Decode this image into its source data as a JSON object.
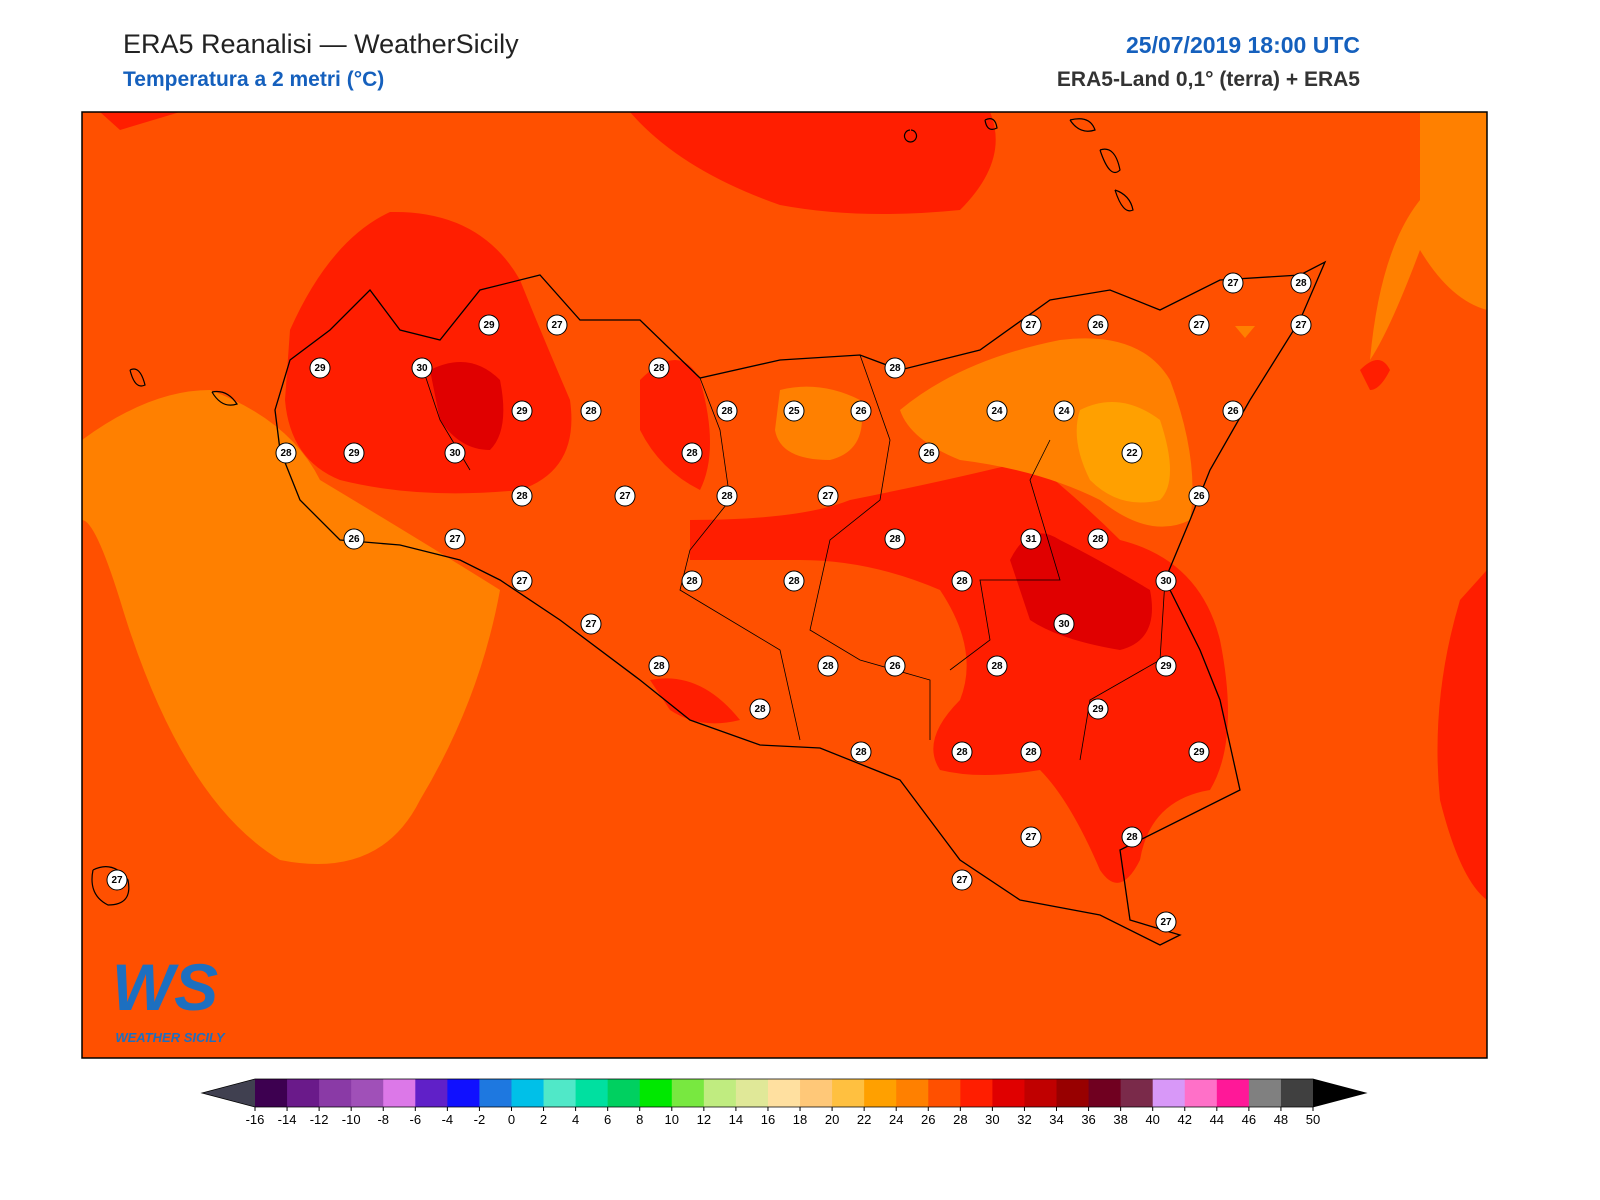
{
  "header": {
    "title": "ERA5 Reanalisi — WeatherSicily",
    "subtitle": "Temperatura a 2 metri (°C)",
    "date": "25/07/2019 18:00 UTC",
    "source": "ERA5-Land 0,1° (terra) + ERA5"
  },
  "stations": {
    "values": [
      29,
      27,
      29,
      30,
      28,
      29,
      28,
      28,
      29,
      30,
      28,
      28,
      25,
      26,
      28,
      28,
      27,
      28,
      27,
      26,
      27,
      27,
      28,
      28,
      27,
      28,
      28,
      28,
      26,
      28,
      28,
      26,
      24,
      24,
      27,
      26,
      27,
      27,
      28,
      27,
      26,
      22,
      26,
      31,
      28,
      28,
      30,
      30,
      28,
      29,
      29,
      28,
      28,
      29,
      27,
      28,
      27,
      27,
      27
    ]
  },
  "logo": {
    "text": "WS",
    "subtitle": "WEATHER SICILY"
  },
  "colorbar": {
    "ticks": [
      -16,
      -14,
      -12,
      -10,
      -8,
      -6,
      -4,
      -2,
      0,
      2,
      4,
      6,
      8,
      10,
      12,
      14,
      16,
      18,
      20,
      22,
      24,
      26,
      28,
      30,
      32,
      34,
      36,
      38,
      40,
      42,
      44,
      46,
      48,
      50
    ],
    "colors": [
      "#3d0050",
      "#6a1a8a",
      "#8a3aa6",
      "#a050b8",
      "#dc78e8",
      "#6020c8",
      "#1010ff",
      "#1e78e0",
      "#00c0e8",
      "#50e8c8",
      "#00e0a0",
      "#00d060",
      "#00e800",
      "#78e840",
      "#c0ec80",
      "#e0e898",
      "#ffe0a0",
      "#ffc878",
      "#ffc040",
      "#ffa000",
      "#ff8000",
      "#ff5000",
      "#ff1e00",
      "#e00000",
      "#c00000",
      "#980000",
      "#700020",
      "#7a2a4a",
      "#d898f8",
      "#ff70c8",
      "#ff1898",
      "#808080",
      "#404040"
    ],
    "under_color": "#404050",
    "over_color": "#000000"
  }
}
